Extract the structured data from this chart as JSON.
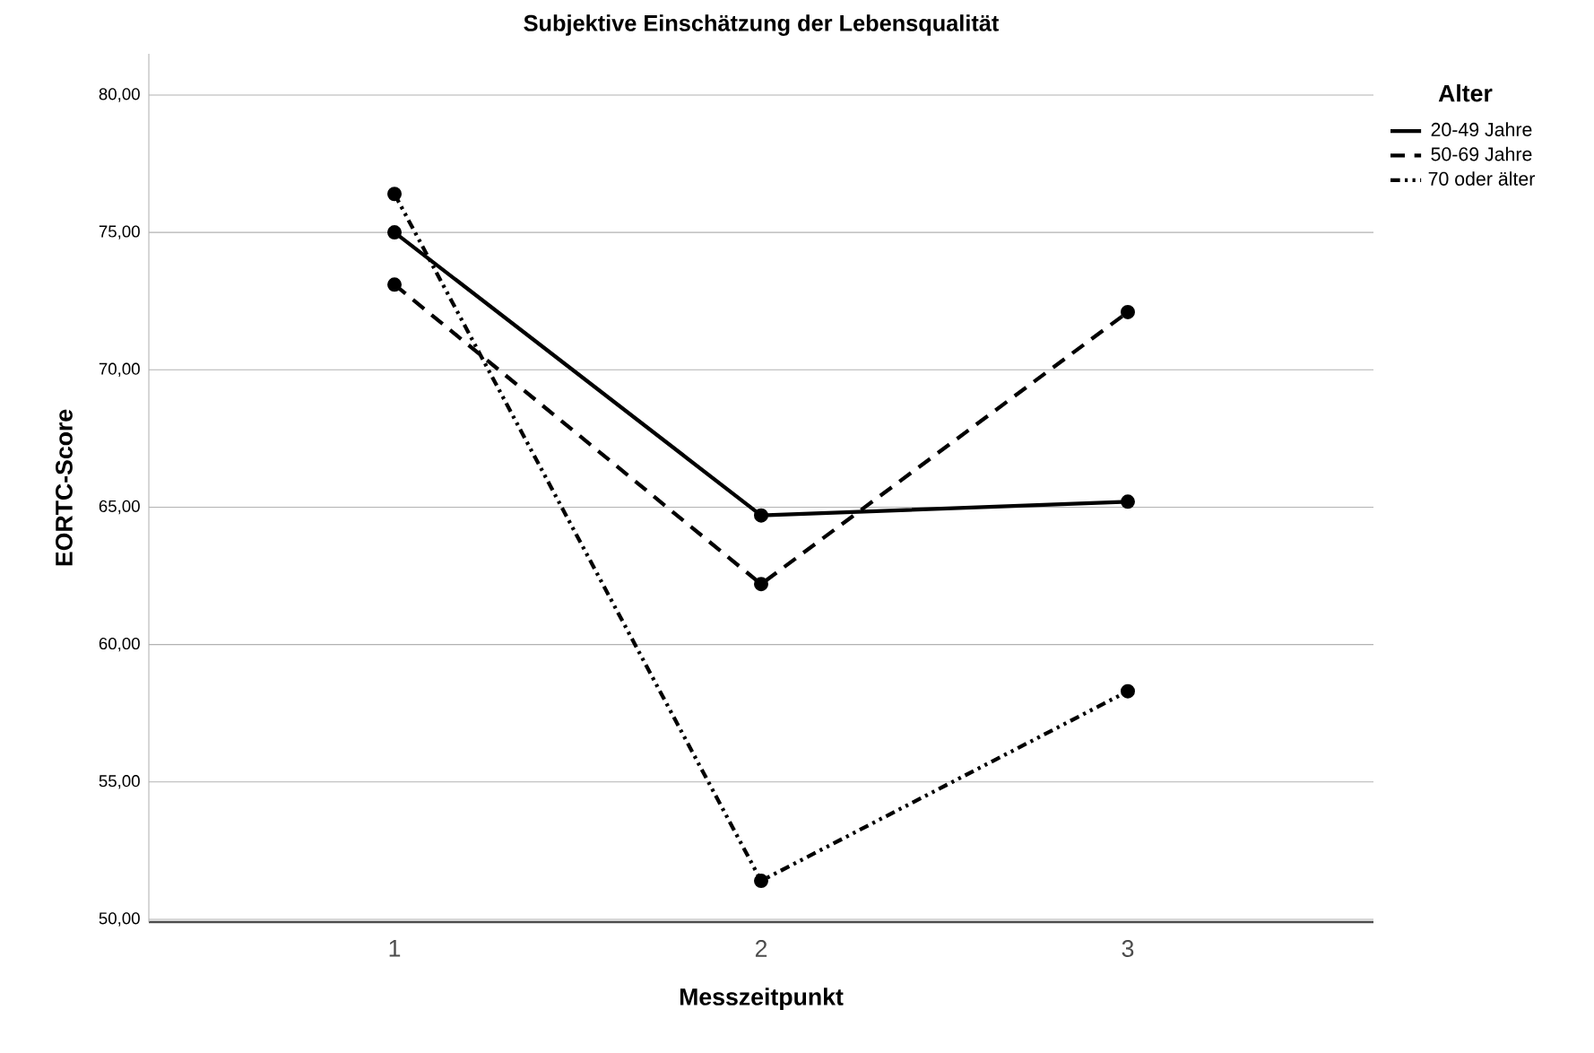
{
  "chart_data": {
    "type": "line",
    "title": "Subjektive Einschätzung der Lebensqualität",
    "xlabel": "Messzeitpunkt",
    "ylabel": "EORTC-Score",
    "legend_title": "Alter",
    "categories": [
      "1",
      "2",
      "3"
    ],
    "series": [
      {
        "name": "20-49 Jahre",
        "color": "#000000",
        "line_style": "solid",
        "values": [
          75.0,
          64.7,
          65.2
        ]
      },
      {
        "name": "50-69 Jahre",
        "color": "#000000",
        "line_style": "dashed",
        "values": [
          73.1,
          62.2,
          72.1
        ]
      },
      {
        "name": "70 oder älter",
        "color": "#000000",
        "line_style": "dashdotdotted",
        "values": [
          76.4,
          51.4,
          58.3
        ]
      }
    ],
    "ylim": [
      49.9,
      81.5
    ],
    "yticks": [
      {
        "value": 50,
        "label": "50,00"
      },
      {
        "value": 55,
        "label": "55,00"
      },
      {
        "value": 60,
        "label": "60,00"
      },
      {
        "value": 65,
        "label": "65,00"
      },
      {
        "value": 70,
        "label": "70,00"
      },
      {
        "value": 75,
        "label": "75,00"
      },
      {
        "value": 80,
        "label": "80,00"
      }
    ],
    "grid": "y",
    "legend": "top right",
    "marker": "circle"
  }
}
